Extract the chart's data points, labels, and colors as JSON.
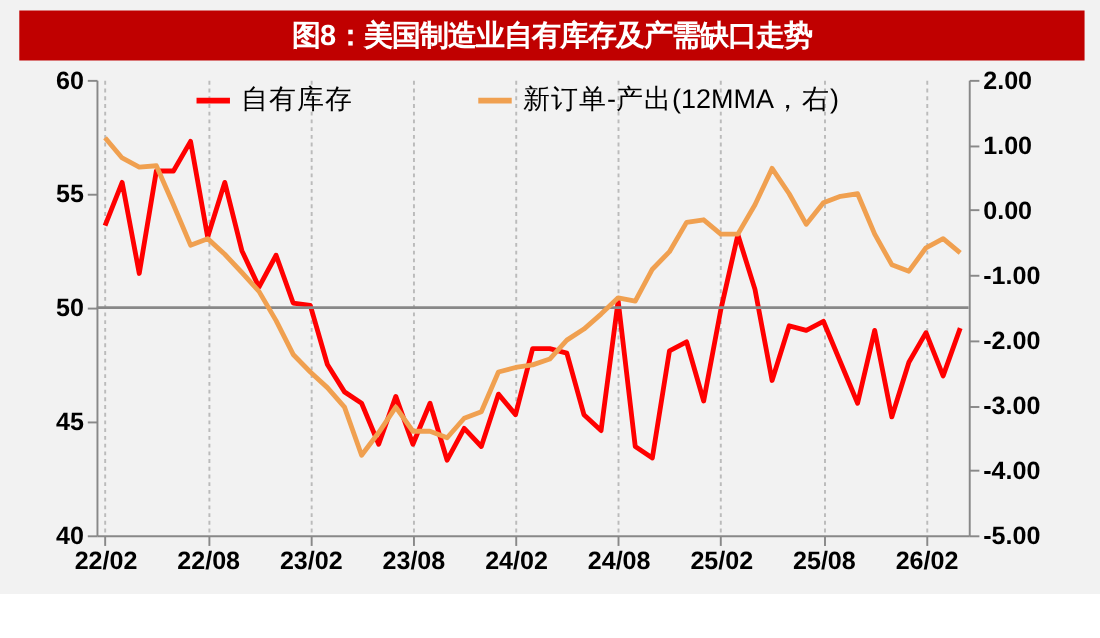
{
  "chart_data": {
    "type": "line",
    "title": "图8：美国制造业自有库存及产需缺口走势",
    "categories": [
      "22/02",
      null,
      null,
      null,
      null,
      null,
      "22/08",
      null,
      null,
      null,
      null,
      null,
      "23/02",
      null,
      null,
      null,
      null,
      null,
      "23/08",
      null,
      null,
      null,
      null,
      null,
      "24/02",
      null,
      null,
      null,
      null,
      null,
      "24/08",
      null,
      null,
      null,
      null,
      null,
      "25/02",
      null,
      null,
      null,
      null,
      null,
      "25/08",
      null,
      null,
      null,
      null,
      null,
      "26/02",
      null,
      null
    ],
    "series": [
      {
        "name": "自有库存",
        "color": "#ff0000",
        "values": [
          53.6,
          55.5,
          51.5,
          56.0,
          56.0,
          57.3,
          53.1,
          55.5,
          52.5,
          50.9,
          52.3,
          50.2,
          50.1,
          47.5,
          46.3,
          45.8,
          44.0,
          46.1,
          44.0,
          45.8,
          43.3,
          44.7,
          43.9,
          46.2,
          45.3,
          48.2,
          48.2,
          48.0,
          45.3,
          44.6,
          50.3,
          43.9,
          43.4,
          48.1,
          48.5,
          45.9,
          49.9,
          53.2,
          50.8,
          46.8,
          49.2,
          49.0,
          49.4,
          47.6,
          45.8,
          49.0,
          45.2,
          47.6,
          48.9,
          47.0,
          49.1
        ]
      },
      {
        "name": "新订单-产出(12MMA，右)",
        "color": "#f0a050",
        "axis": "y2",
        "values": [
          1.11,
          0.8,
          0.66,
          0.68,
          0.08,
          -0.54,
          -0.44,
          -0.68,
          -0.96,
          -1.25,
          -1.7,
          -2.22,
          -2.49,
          -2.73,
          -3.03,
          -3.77,
          -3.42,
          -3.03,
          -3.4,
          -3.4,
          -3.5,
          -3.2,
          -3.1,
          -2.49,
          -2.42,
          -2.38,
          -2.29,
          -2.0,
          -1.83,
          -1.6,
          -1.35,
          -1.4,
          -0.91,
          -0.64,
          -0.19,
          -0.15,
          -0.37,
          -0.37,
          0.08,
          0.64,
          0.25,
          -0.22,
          0.11,
          0.21,
          0.25,
          -0.37,
          -0.84,
          -0.94,
          -0.58,
          -0.44,
          -0.66
        ]
      }
    ],
    "ylim": [
      40,
      60
    ],
    "yticks": [
      40,
      45,
      50,
      55,
      60
    ],
    "y2lim": [
      -5,
      2
    ],
    "y2ticks": [
      {
        "value": -5,
        "label": "-5.00"
      },
      {
        "value": -4,
        "label": "-4.00"
      },
      {
        "value": -3,
        "label": "-3.00"
      },
      {
        "value": -2,
        "label": "-2.00"
      },
      {
        "value": -1,
        "label": "-1.00"
      },
      {
        "value": 0,
        "label": "0.00"
      },
      {
        "value": 1,
        "label": "1.00"
      },
      {
        "value": 2,
        "label": "2.00"
      }
    ],
    "ref_lines": [
      {
        "axis": "y",
        "value": 50
      }
    ],
    "grid": "x",
    "legend": "top",
    "marker": "none",
    "line_style": "solid"
  }
}
